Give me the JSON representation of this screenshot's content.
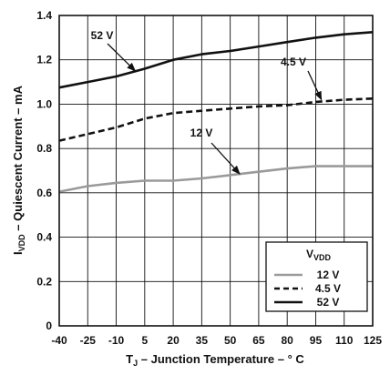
{
  "chart_data": {
    "type": "line",
    "title": "",
    "xlabel": {
      "prefix": "T",
      "sub": "J",
      "rest": " – Junction Temperature – ° C"
    },
    "ylabel": {
      "prefix": "I",
      "sub": "VDD",
      "rest": " – Quiescent Current – mA"
    },
    "x_ticks": [
      -40,
      -25,
      -10,
      5,
      20,
      35,
      50,
      65,
      80,
      95,
      110,
      125
    ],
    "y_ticks": [
      0,
      0.2,
      0.4,
      0.6,
      0.8,
      1.0,
      1.2,
      1.4
    ],
    "y_tick_labels": [
      "0",
      "0.2",
      "0.4",
      "0.6",
      "0.8",
      "1.0",
      "1.2",
      "1.4"
    ],
    "xlim": [
      -40,
      125
    ],
    "ylim": [
      0,
      1.4
    ],
    "grid": true,
    "x": [
      -40,
      -25,
      -10,
      5,
      20,
      35,
      50,
      65,
      80,
      95,
      110,
      125
    ],
    "series": [
      {
        "name": "12 V",
        "color": "#9a9a9a",
        "dash": "solid",
        "values": [
          0.605,
          0.63,
          0.645,
          0.655,
          0.655,
          0.665,
          0.68,
          0.695,
          0.71,
          0.72,
          0.72,
          0.72
        ]
      },
      {
        "name": "4.5 V",
        "color": "#111111",
        "dash": "dashed",
        "values": [
          0.835,
          0.865,
          0.895,
          0.935,
          0.96,
          0.97,
          0.98,
          0.99,
          0.995,
          1.01,
          1.02,
          1.025
        ]
      },
      {
        "name": "52 V",
        "color": "#111111",
        "dash": "solid",
        "values": [
          1.075,
          1.1,
          1.125,
          1.16,
          1.2,
          1.225,
          1.24,
          1.26,
          1.28,
          1.3,
          1.315,
          1.325
        ]
      }
    ],
    "annotations": [
      {
        "text": "52 V",
        "series": "52 V",
        "point": [
          0,
          1.15
        ]
      },
      {
        "text": "4.5 V",
        "series": "4.5 V",
        "point": [
          98,
          1.02
        ]
      },
      {
        "text": "12 V",
        "series": "12 V",
        "point": [
          55,
          0.685
        ]
      }
    ],
    "legend": {
      "title_prefix": "V",
      "title_sub": "VDD",
      "placement": "bottom-right",
      "entries": [
        "12 V",
        "4.5 V",
        "52 V"
      ]
    }
  }
}
